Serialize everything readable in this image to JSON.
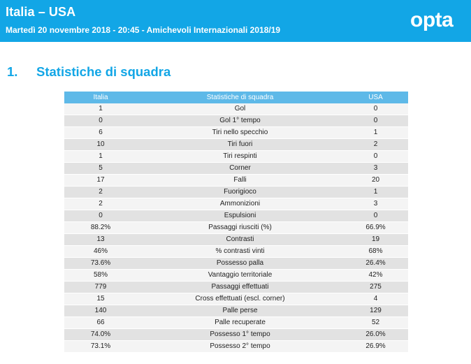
{
  "header": {
    "title": "Italia – USA",
    "subtitle": "Martedì 20 novembre 2018 - 20:45 - Amichevoli Internazionali 2018/19",
    "logo_text": "opta",
    "bg_color": "#12a6e6"
  },
  "section": {
    "number": "1.",
    "title": "Statistiche di squadra"
  },
  "table": {
    "columns": [
      "Italia",
      "Statistiche di squadra",
      "USA"
    ],
    "rows": [
      [
        "1",
        "Gol",
        "0"
      ],
      [
        "0",
        "Gol 1° tempo",
        "0"
      ],
      [
        "6",
        "Tiri nello specchio",
        "1"
      ],
      [
        "10",
        "Tiri fuori",
        "2"
      ],
      [
        "1",
        "Tiri respinti",
        "0"
      ],
      [
        "5",
        "Corner",
        "3"
      ],
      [
        "17",
        "Falli",
        "20"
      ],
      [
        "2",
        "Fuorigioco",
        "1"
      ],
      [
        "2",
        "Ammonizioni",
        "3"
      ],
      [
        "0",
        "Espulsioni",
        "0"
      ],
      [
        "88.2%",
        "Passaggi riusciti (%)",
        "66.9%"
      ],
      [
        "13",
        "Contrasti",
        "19"
      ],
      [
        "46%",
        "% contrasti vinti",
        "68%"
      ],
      [
        "73.6%",
        "Possesso palla",
        "26.4%"
      ],
      [
        "58%",
        "Vantaggio territoriale",
        "42%"
      ],
      [
        "779",
        "Passaggi effettuati",
        "275"
      ],
      [
        "15",
        "Cross effettuati (escl. corner)",
        "4"
      ],
      [
        "140",
        "Palle perse",
        "129"
      ],
      [
        "66",
        "Palle recuperate",
        "52"
      ],
      [
        "74.0%",
        "Possesso 1° tempo",
        "26.0%"
      ],
      [
        "73.1%",
        "Possesso 2° tempo",
        "26.9%"
      ]
    ]
  }
}
